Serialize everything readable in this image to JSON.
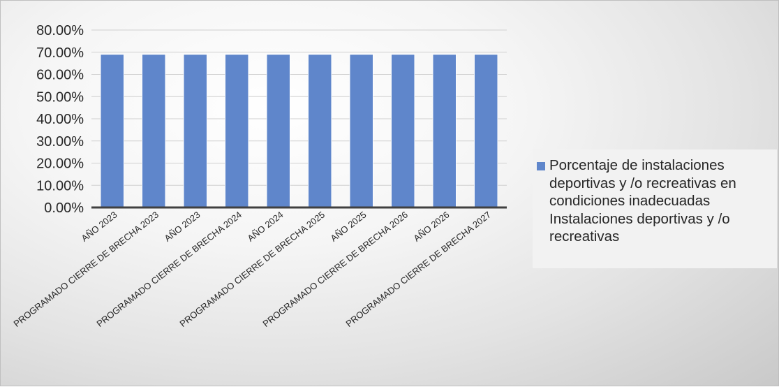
{
  "chart_data": {
    "type": "bar",
    "categories": [
      "AÑO 2023",
      "PROGRAMADO CIERRE DE BRECHA 2023",
      "AÑO 2023",
      "PROGRAMADO CIERRE DE BRECHA 2024",
      "AÑO 2024",
      "PROGRAMADO CIERRE DE BRECHA 2025",
      "AÑO 2025",
      "PROGRAMADO CIERRE DE BRECHA 2026",
      "AÑO 2026",
      "PROGRAMADO CIERRE DE BRECHA 2027"
    ],
    "series": [
      {
        "name": "Porcentaje de instalaciones deportivas y /o recreativas en condiciones inadecuadas Instalaciones deportivas y /o recreativas",
        "values": [
          0.69,
          0.69,
          0.69,
          0.69,
          0.69,
          0.69,
          0.69,
          0.69,
          0.69,
          0.69
        ],
        "color": "#5f86cb"
      }
    ],
    "y_ticks": [
      "0.00%",
      "10.00%",
      "20.00%",
      "30.00%",
      "40.00%",
      "50.00%",
      "60.00%",
      "70.00%",
      "80.00%"
    ],
    "ylim": [
      0,
      0.8
    ],
    "grid": true,
    "legend_position": "right",
    "legend_lines": [
      "Porcentaje de instalaciones",
      "deportivas y /o recreativas en",
      "condiciones inadecuadas",
      "Instalaciones deportivas y /o",
      "recreativas"
    ],
    "title": "",
    "xlabel": "",
    "ylabel": ""
  }
}
